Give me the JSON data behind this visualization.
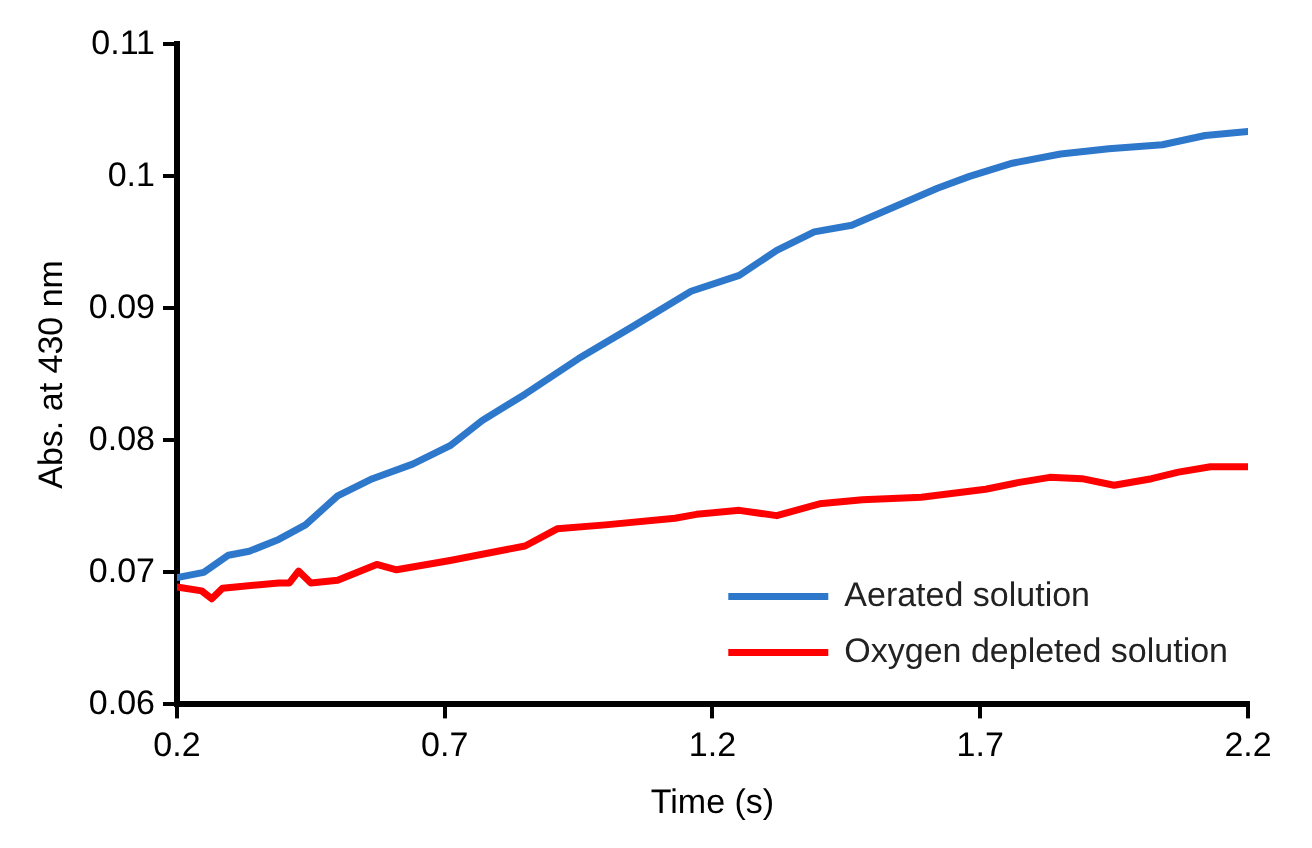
{
  "chart_data": {
    "type": "line",
    "xlabel": "Time (s)",
    "ylabel": "Abs. at 430 nm",
    "xlim": [
      0.2,
      2.2
    ],
    "xticks": [
      0.2,
      0.7,
      1.2,
      1.7,
      2.2
    ],
    "ylim": [
      0.06,
      0.11
    ],
    "yticks": [
      0.06,
      0.07,
      0.08,
      0.09,
      0.1,
      0.11
    ],
    "grid": false,
    "legend": "bottom right",
    "marker": "none",
    "line_style": "solid",
    "series": [
      {
        "name": "Aerated solution",
        "color": "#2e78cc",
        "x": [
          0.2,
          0.25,
          0.296,
          0.335,
          0.39,
          0.44,
          0.5,
          0.565,
          0.64,
          0.71,
          0.77,
          0.85,
          0.95,
          1.05,
          1.16,
          1.25,
          1.32,
          1.39,
          1.46,
          1.54,
          1.62,
          1.68,
          1.76,
          1.85,
          1.94,
          2.04,
          2.12,
          2.2
        ],
        "values": [
          0.0696,
          0.07,
          0.0713,
          0.0716,
          0.0725,
          0.0736,
          0.0758,
          0.0771,
          0.0782,
          0.0796,
          0.0815,
          0.0835,
          0.0862,
          0.0886,
          0.0913,
          0.0925,
          0.0944,
          0.0958,
          0.0963,
          0.0977,
          0.0991,
          0.1,
          0.101,
          0.1017,
          0.1021,
          0.1024,
          0.1031,
          0.1034
        ]
      },
      {
        "name": "Oxygen depleted solution",
        "color": "#ff0000",
        "x": [
          0.2,
          0.246,
          0.265,
          0.285,
          0.39,
          0.41,
          0.427,
          0.45,
          0.5,
          0.573,
          0.61,
          0.71,
          0.85,
          0.91,
          1.0,
          1.13,
          1.17,
          1.25,
          1.32,
          1.4,
          1.48,
          1.59,
          1.71,
          1.77,
          1.83,
          1.89,
          1.95,
          2.02,
          2.07,
          2.13,
          2.2
        ],
        "values": [
          0.0689,
          0.0686,
          0.068,
          0.0688,
          0.0692,
          0.0692,
          0.0701,
          0.0692,
          0.0694,
          0.0706,
          0.0702,
          0.0709,
          0.072,
          0.0733,
          0.0736,
          0.0741,
          0.0744,
          0.0747,
          0.0743,
          0.0752,
          0.0755,
          0.0757,
          0.0763,
          0.0768,
          0.0772,
          0.0771,
          0.0766,
          0.0771,
          0.0776,
          0.078,
          0.078
        ]
      }
    ]
  }
}
